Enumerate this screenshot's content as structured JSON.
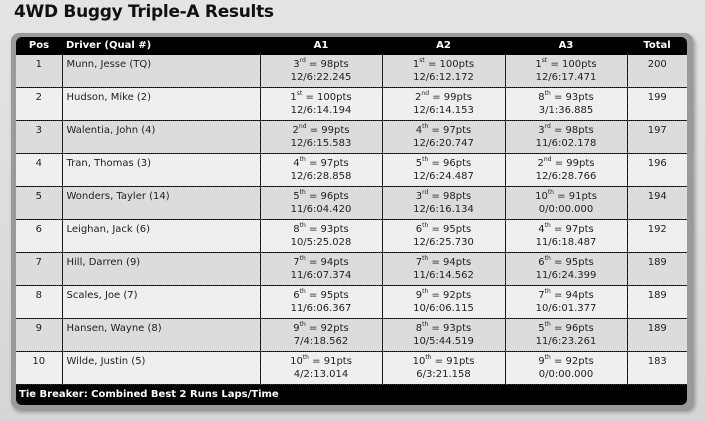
{
  "title": "4WD Buggy Triple-A Results",
  "columns": {
    "pos": "Pos",
    "driver": "Driver (Qual #)",
    "a1": "A1",
    "a2": "A2",
    "a3": "A3",
    "total": "Total"
  },
  "rows": [
    {
      "pos": "1",
      "driver": "Munn, Jesse (TQ)",
      "a1": {
        "rank": "3",
        "suf": "rd",
        "pts": "98pts",
        "time": "12/6:22.245"
      },
      "a2": {
        "rank": "1",
        "suf": "st",
        "pts": "100pts",
        "time": "12/6:12.172"
      },
      "a3": {
        "rank": "1",
        "suf": "st",
        "pts": "100pts",
        "time": "12/6:17.471"
      },
      "total": "200"
    },
    {
      "pos": "2",
      "driver": "Hudson, Mike (2)",
      "a1": {
        "rank": "1",
        "suf": "st",
        "pts": "100pts",
        "time": "12/6:14.194"
      },
      "a2": {
        "rank": "2",
        "suf": "nd",
        "pts": "99pts",
        "time": "12/6:14.153"
      },
      "a3": {
        "rank": "8",
        "suf": "th",
        "pts": "93pts",
        "time": "3/1:36.885"
      },
      "total": "199"
    },
    {
      "pos": "3",
      "driver": "Walentia, John (4)",
      "a1": {
        "rank": "2",
        "suf": "nd",
        "pts": "99pts",
        "time": "12/6:15.583"
      },
      "a2": {
        "rank": "4",
        "suf": "th",
        "pts": "97pts",
        "time": "12/6:20.747"
      },
      "a3": {
        "rank": "3",
        "suf": "rd",
        "pts": "98pts",
        "time": "11/6:02.178"
      },
      "total": "197"
    },
    {
      "pos": "4",
      "driver": "Tran, Thomas (3)",
      "a1": {
        "rank": "4",
        "suf": "th",
        "pts": "97pts",
        "time": "12/6:28.858"
      },
      "a2": {
        "rank": "5",
        "suf": "th",
        "pts": "96pts",
        "time": "12/6:24.487"
      },
      "a3": {
        "rank": "2",
        "suf": "nd",
        "pts": "99pts",
        "time": "12/6:28.766"
      },
      "total": "196"
    },
    {
      "pos": "5",
      "driver": "Wonders, Tayler (14)",
      "a1": {
        "rank": "5",
        "suf": "th",
        "pts": "96pts",
        "time": "11/6:04.420"
      },
      "a2": {
        "rank": "3",
        "suf": "rd",
        "pts": "98pts",
        "time": "12/6:16.134"
      },
      "a3": {
        "rank": "10",
        "suf": "th",
        "pts": "91pts",
        "time": "0/0:00.000"
      },
      "total": "194"
    },
    {
      "pos": "6",
      "driver": "Leighan, Jack (6)",
      "a1": {
        "rank": "8",
        "suf": "th",
        "pts": "93pts",
        "time": "10/5:25.028"
      },
      "a2": {
        "rank": "6",
        "suf": "th",
        "pts": "95pts",
        "time": "12/6:25.730"
      },
      "a3": {
        "rank": "4",
        "suf": "th",
        "pts": "97pts",
        "time": "11/6:18.487"
      },
      "total": "192"
    },
    {
      "pos": "7",
      "driver": "Hill, Darren (9)",
      "a1": {
        "rank": "7",
        "suf": "th",
        "pts": "94pts",
        "time": "11/6:07.374"
      },
      "a2": {
        "rank": "7",
        "suf": "th",
        "pts": "94pts",
        "time": "11/6:14.562"
      },
      "a3": {
        "rank": "6",
        "suf": "th",
        "pts": "95pts",
        "time": "11/6:24.399"
      },
      "total": "189"
    },
    {
      "pos": "8",
      "driver": "Scales, Joe (7)",
      "a1": {
        "rank": "6",
        "suf": "th",
        "pts": "95pts",
        "time": "11/6:06.367"
      },
      "a2": {
        "rank": "9",
        "suf": "th",
        "pts": "92pts",
        "time": "10/6:06.115"
      },
      "a3": {
        "rank": "7",
        "suf": "th",
        "pts": "94pts",
        "time": "10/6:01.377"
      },
      "total": "189"
    },
    {
      "pos": "9",
      "driver": "Hansen, Wayne (8)",
      "a1": {
        "rank": "9",
        "suf": "th",
        "pts": "92pts",
        "time": "7/4:18.562"
      },
      "a2": {
        "rank": "8",
        "suf": "th",
        "pts": "93pts",
        "time": "10/5:44.519"
      },
      "a3": {
        "rank": "5",
        "suf": "th",
        "pts": "96pts",
        "time": "11/6:23.261"
      },
      "total": "189"
    },
    {
      "pos": "10",
      "driver": "Wilde, Justin (5)",
      "a1": {
        "rank": "10",
        "suf": "th",
        "pts": "91pts",
        "time": "4/2:13.014"
      },
      "a2": {
        "rank": "10",
        "suf": "th",
        "pts": "91pts",
        "time": "6/3:21.158"
      },
      "a3": {
        "rank": "9",
        "suf": "th",
        "pts": "92pts",
        "time": "0/0:00.000"
      },
      "total": "183"
    }
  ],
  "footer": "Tie Breaker: Combined Best 2 Runs Laps/Time"
}
